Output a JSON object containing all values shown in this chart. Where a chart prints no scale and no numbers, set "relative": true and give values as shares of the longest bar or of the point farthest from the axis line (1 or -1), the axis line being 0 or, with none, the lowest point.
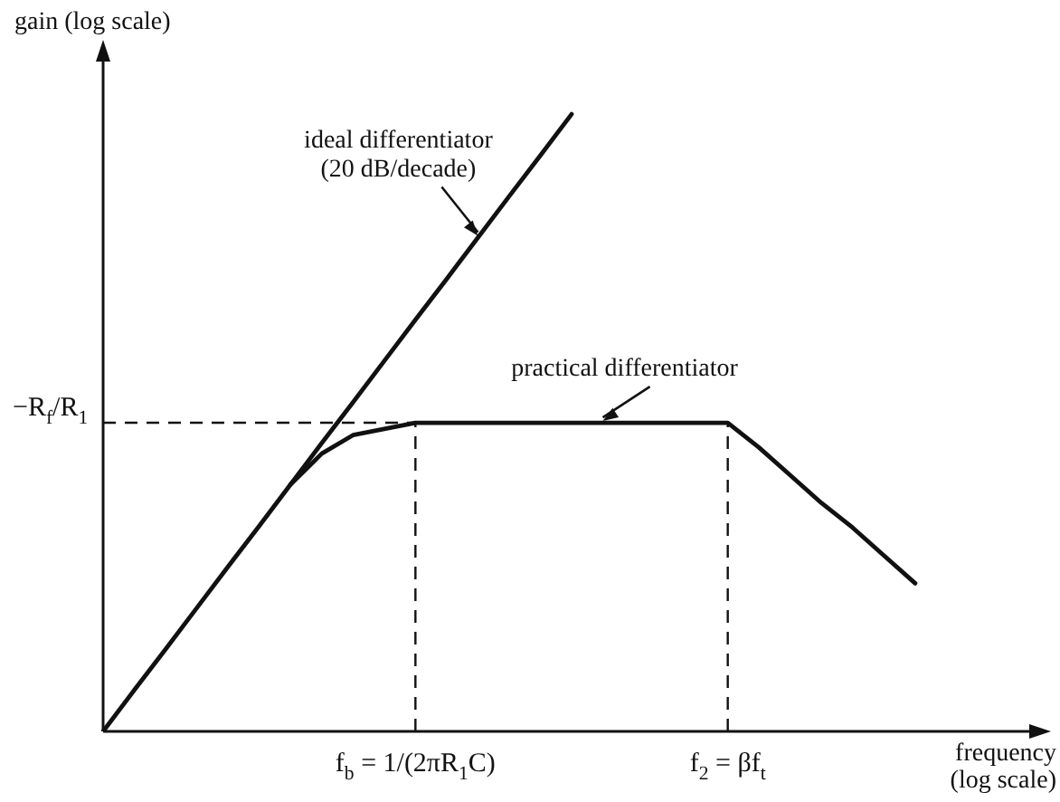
{
  "chart_data": {
    "type": "line",
    "relative": true,
    "xlabel": "frequency (log scale)",
    "ylabel": "gain (log scale)",
    "legend": false,
    "marker": "none",
    "line_style": "solid",
    "categories": [
      null,
      null,
      null,
      null,
      null,
      null,
      null,
      null,
      null,
      null,
      "f$_{b}$ = 1/(2πR$_{1}$C)",
      null,
      null,
      null,
      null,
      null,
      null,
      null,
      null,
      null,
      "f$_{2}$ = βf$_{t}$",
      null,
      null,
      null,
      null,
      null,
      null,
      null,
      null,
      null,
      null
    ],
    "series": [
      {
        "name": "ideal differentiator",
        "color": "#111111",
        "values": [
          0,
          0.067,
          0.133,
          0.2,
          0.267,
          0.333,
          0.4,
          0.467,
          0.533,
          0.6,
          0.667,
          0.733,
          0.8,
          0.867,
          0.933,
          1,
          null,
          null,
          null,
          null,
          null,
          null,
          null,
          null,
          null,
          null,
          null,
          null,
          null,
          null,
          null
        ]
      },
      {
        "name": "practical differentiator",
        "color": "#111111",
        "values": [
          null,
          null,
          null,
          null,
          null,
          null,
          0.4,
          0.45,
          0.48,
          0.49,
          0.5,
          0.5,
          0.5,
          0.5,
          0.5,
          0.5,
          0.5,
          0.5,
          0.5,
          0.5,
          0.5,
          0.46,
          0.415,
          0.37,
          0.33,
          0.285,
          0.24,
          null,
          null,
          null,
          null
        ]
      }
    ],
    "ref_lines": [
      {
        "axis": "y",
        "value": 0.5,
        "label": "−R$_{f}$/R$_{1}$",
        "line_style": "dashed"
      },
      {
        "axis": "x",
        "value": "f$_{b}$ = 1/(2πR$_{1}$C)",
        "line_style": "dashed"
      },
      {
        "axis": "x",
        "value": "f$_{2}$ = βf$_{t}$",
        "line_style": "dashed"
      }
    ],
    "annotations": [
      "(20 dB/decade)"
    ]
  }
}
